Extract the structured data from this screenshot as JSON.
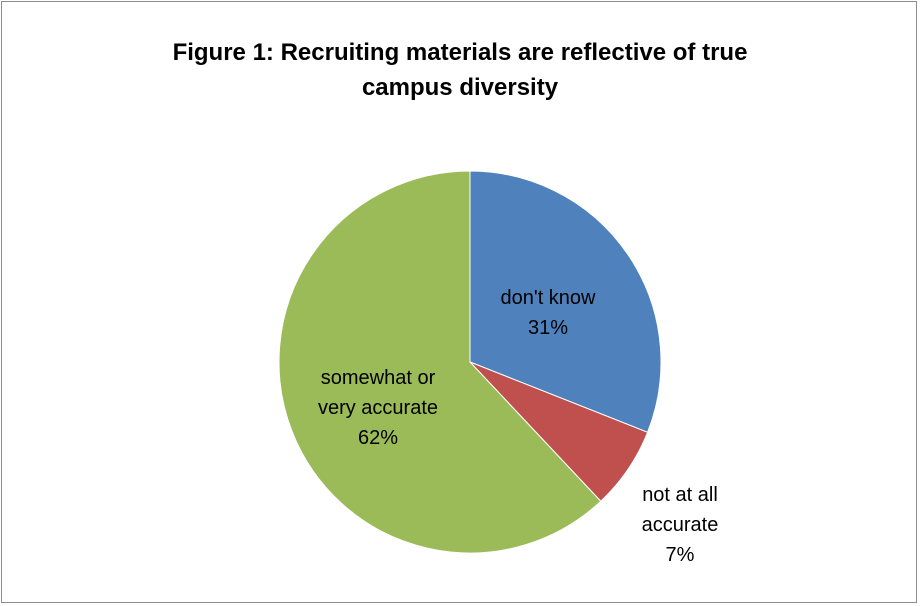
{
  "chart_data": {
    "type": "pie",
    "title_lines": [
      "Figure 1: Recruiting materials are reflective of true",
      "campus diversity"
    ],
    "slices": [
      {
        "label_lines": [
          "don't know"
        ],
        "percent_label": "31%",
        "value": 31,
        "color": "#4f81bd"
      },
      {
        "label_lines": [
          "not at all",
          "accurate"
        ],
        "percent_label": "7%",
        "value": 7,
        "color": "#c0504d"
      },
      {
        "label_lines": [
          "somewhat or",
          "very accurate"
        ],
        "percent_label": "62%",
        "value": 62,
        "color": "#9bbb59"
      }
    ],
    "start_angle_deg": 0,
    "direction": "clockwise",
    "legend": "none"
  }
}
